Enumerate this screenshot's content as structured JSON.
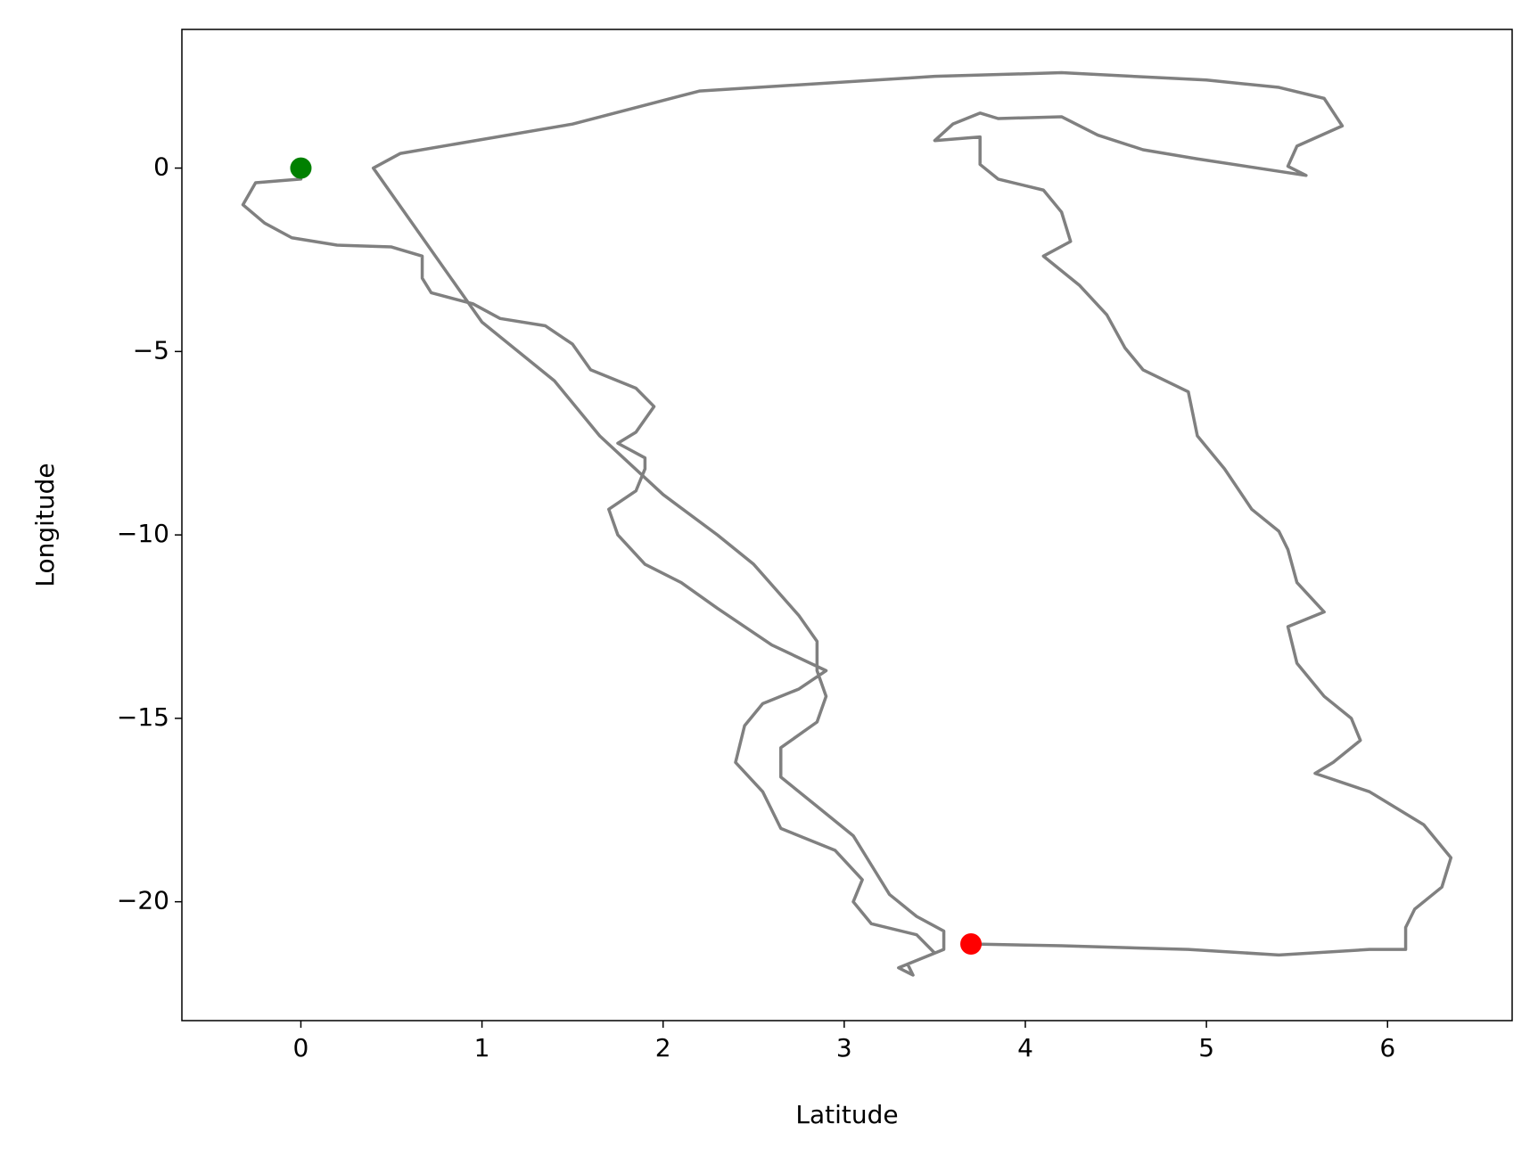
{
  "chart_data": {
    "type": "line",
    "x_label": "Latitude",
    "y_label": "Longitude",
    "xlim": [
      -0.657,
      6.688
    ],
    "ylim": [
      -23.24,
      3.78
    ],
    "xticks": [
      0,
      1,
      2,
      3,
      4,
      5,
      6
    ],
    "yticks": [
      {
        "value": -20,
        "label": "−20"
      },
      {
        "value": -15,
        "label": "−15"
      },
      {
        "value": -10,
        "label": "−10"
      },
      {
        "value": -5,
        "label": "−5"
      },
      0
    ],
    "series": [
      {
        "color": "#808080",
        "x": [
          0,
          0,
          -0.25,
          -0.32,
          -0.2,
          -0.05,
          0.2,
          0.5,
          0.67,
          0.67,
          0.72,
          0.95,
          1.1,
          1.35,
          1.5,
          1.6,
          1.85,
          1.95,
          1.85,
          1.75,
          1.9,
          1.9,
          1.85,
          1.7,
          1.75,
          1.9,
          2.1,
          2.3,
          2.6,
          2.9,
          2.75,
          2.55,
          2.45,
          2.4,
          2.55,
          2.6,
          2.65,
          2.95,
          3.1,
          3.05,
          3.15,
          3.4,
          3.5,
          3.35,
          3.38,
          3.3,
          3.55,
          3.55,
          3.4,
          3.25,
          3.15,
          3.05,
          2.85,
          2.65,
          2.65,
          2.85,
          2.9,
          2.85,
          2.85,
          2.75,
          2.5,
          2.3,
          2.0,
          1.65,
          1.4,
          1.0,
          0.4,
          0.55,
          1.5,
          2.2,
          3.5,
          4.2,
          5.0,
          5.4,
          5.65,
          5.75,
          5.5,
          5.45,
          5.55,
          4.95,
          4.65,
          4.4,
          4.2,
          3.85,
          3.75,
          3.6,
          3.5,
          3.75,
          3.75,
          3.85,
          4.1,
          4.2,
          4.25,
          4.1,
          4.3,
          4.45,
          4.55,
          4.65,
          4.9,
          4.95,
          5.1,
          5.25,
          5.4,
          5.45,
          5.5,
          5.65,
          5.45,
          5.5,
          5.65,
          5.8,
          5.85,
          5.7,
          5.6,
          5.9,
          6.2,
          6.35,
          6.3,
          6.15,
          6.1,
          6.1,
          5.9,
          5.4,
          4.9,
          4.2,
          3.7
        ],
        "values": [
          0,
          -0.3,
          -0.4,
          -1.0,
          -1.5,
          -1.9,
          -2.1,
          -2.15,
          -2.4,
          -3.0,
          -3.4,
          -3.7,
          -4.1,
          -4.3,
          -4.8,
          -5.5,
          -6.0,
          -6.5,
          -7.2,
          -7.5,
          -7.9,
          -8.2,
          -8.8,
          -9.3,
          -10.0,
          -10.8,
          -11.3,
          -12.0,
          -13.0,
          -13.7,
          -14.2,
          -14.6,
          -15.2,
          -16.2,
          -17.0,
          -17.5,
          -18.0,
          -18.6,
          -19.4,
          -20.0,
          -20.6,
          -20.9,
          -21.4,
          -21.7,
          -22.0,
          -21.8,
          -21.3,
          -20.8,
          -20.4,
          -19.8,
          -19.0,
          -18.2,
          -17.4,
          -16.6,
          -15.8,
          -15.1,
          -14.4,
          -13.7,
          -12.9,
          -12.2,
          -10.8,
          -10.0,
          -8.9,
          -7.3,
          -5.8,
          -4.2,
          0.0,
          0.4,
          1.2,
          2.1,
          2.5,
          2.6,
          2.4,
          2.2,
          1.9,
          1.15,
          0.6,
          0.05,
          -0.2,
          0.25,
          0.5,
          0.9,
          1.4,
          1.35,
          1.5,
          1.2,
          0.75,
          0.85,
          0.1,
          -0.3,
          -0.6,
          -1.2,
          -2.0,
          -2.4,
          -3.2,
          -4.0,
          -4.9,
          -5.5,
          -6.1,
          -7.3,
          -8.2,
          -9.3,
          -9.9,
          -10.4,
          -11.3,
          -12.1,
          -12.5,
          -13.5,
          -14.4,
          -15.0,
          -15.6,
          -16.2,
          -16.5,
          -17.0,
          -17.9,
          -18.8,
          -19.6,
          -20.2,
          -20.7,
          -21.3,
          -21.3,
          -21.45,
          -21.3,
          -21.2,
          -21.15
        ]
      }
    ],
    "points": [
      {
        "color": "green",
        "x": 0,
        "y": 0
      },
      {
        "color": "red",
        "x": 3.7,
        "y": -21.15
      }
    ]
  }
}
